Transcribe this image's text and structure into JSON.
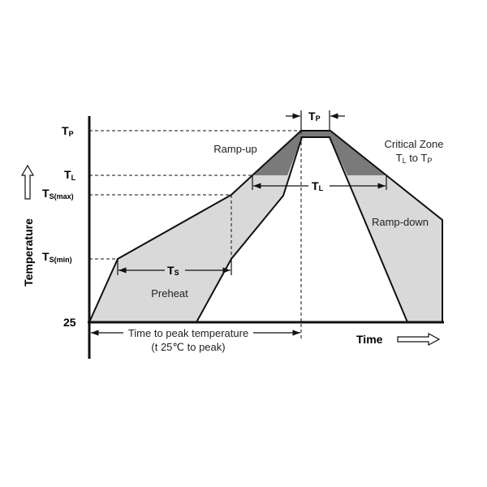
{
  "y_levels": {
    "tp": {
      "main": "T",
      "sub": "P"
    },
    "tl": {
      "main": "T",
      "sub": "L"
    },
    "ts_max": {
      "main": "T",
      "sub": "S(max)"
    },
    "ts_min": {
      "main": "T",
      "sub": "S(min)"
    },
    "base": "25"
  },
  "y_axis_label": "Temperature",
  "x_axis_label": "Time",
  "regions": {
    "ramp_up": "Ramp-up",
    "preheat": "Preheat",
    "ramp_down": "Ramp-down",
    "critical_zone": "Critical Zone",
    "critical_range": {
      "a": "T",
      "a_sub": "L",
      "mid": " to ",
      "b": "T",
      "b_sub": "P"
    }
  },
  "dimensions": {
    "tp": {
      "main": "T",
      "sub": "P"
    },
    "tl": {
      "main": "T",
      "sub": "L"
    },
    "ts": {
      "main": "T",
      "sub": "S"
    },
    "time_to_peak": "Time to peak temperature",
    "time_to_peak_detail": "(t 25℃ to peak)"
  },
  "colors": {
    "light_zone": "#d9d9d9",
    "critical_zone": "#7a7a7a",
    "line": "#111111"
  }
}
